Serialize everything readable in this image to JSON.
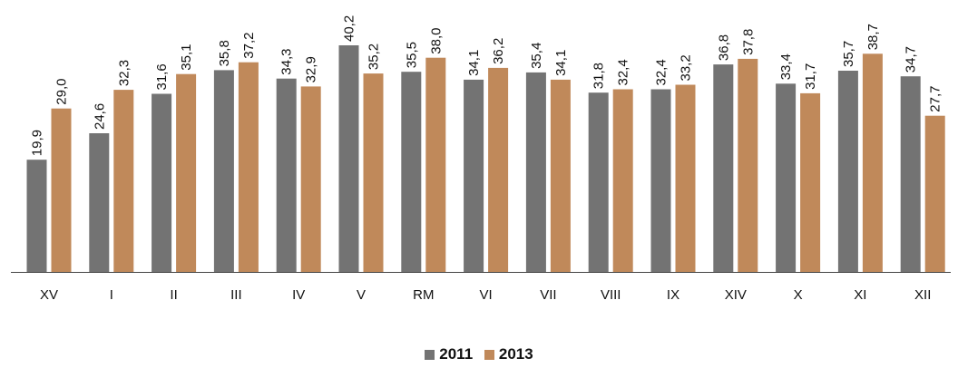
{
  "chart_data": {
    "type": "bar",
    "categories": [
      "XV",
      "I",
      "II",
      "III",
      "IV",
      "V",
      "RM",
      "VI",
      "VII",
      "VIII",
      "IX",
      "XIV",
      "X",
      "XI",
      "XII"
    ],
    "series": [
      {
        "name": "2011",
        "color": "#737373",
        "values": [
          19.9,
          24.6,
          31.6,
          35.8,
          34.3,
          40.2,
          35.5,
          34.1,
          35.4,
          31.8,
          32.4,
          36.8,
          33.4,
          35.7,
          34.7
        ]
      },
      {
        "name": "2013",
        "color": "#c0895a",
        "values": [
          29.0,
          32.3,
          35.1,
          37.2,
          32.9,
          35.2,
          38.0,
          36.2,
          34.1,
          32.4,
          33.2,
          37.8,
          31.7,
          38.7,
          27.7
        ]
      }
    ],
    "value_labels_decimal_separator": ",",
    "ylim": [
      0,
      41
    ],
    "grid": false,
    "legend_position": "bottom-center"
  }
}
